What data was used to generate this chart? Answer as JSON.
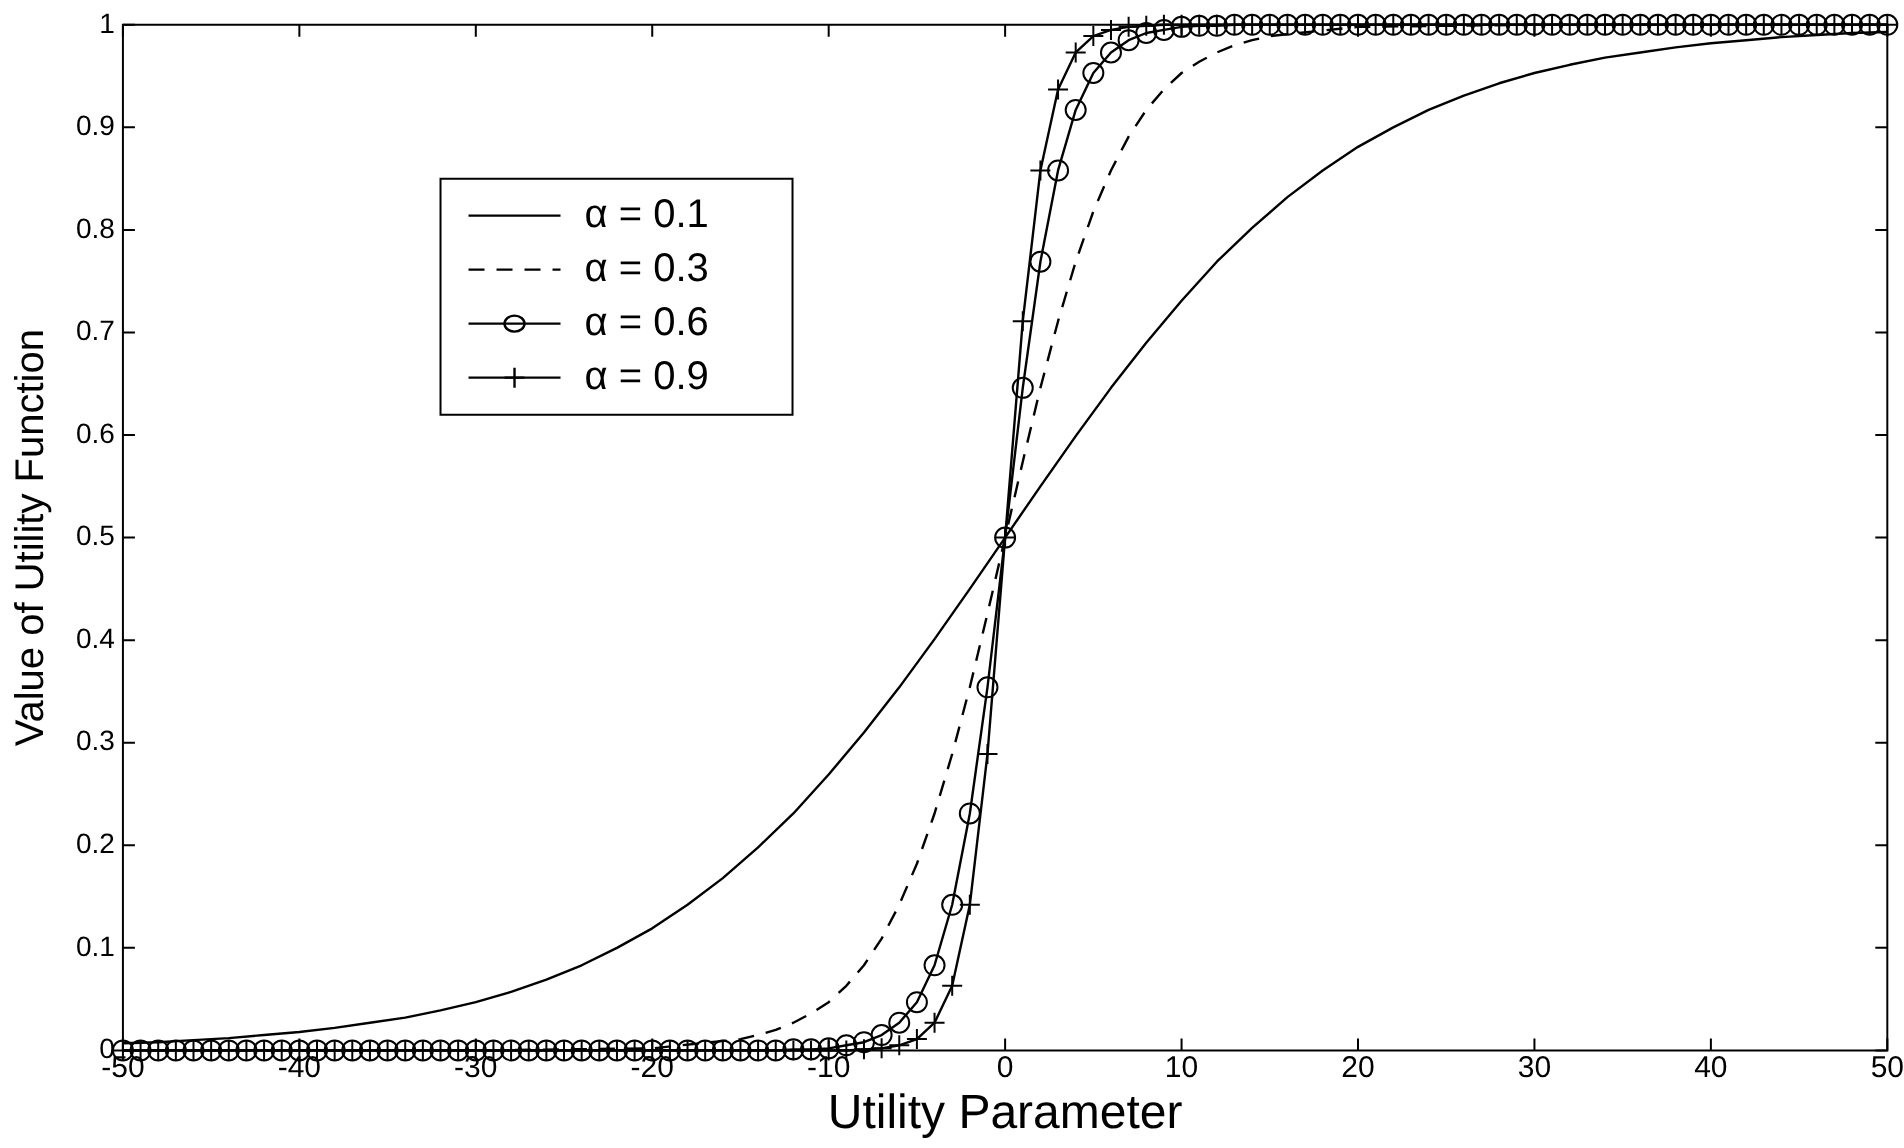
{
  "chart_data": {
    "type": "line",
    "xlabel": "Utility Parameter",
    "ylabel": "Value of Utility Function",
    "series": [
      {
        "name": "α = 0.1",
        "color": "#000000",
        "marker": "none",
        "line_style": "solid",
        "x": [
          -50,
          -48,
          -46,
          -44,
          -42,
          -40,
          -38,
          -36,
          -34,
          -32,
          -30,
          -28,
          -26,
          -24,
          -22,
          -20,
          -18,
          -16,
          -14,
          -12,
          -10,
          -8,
          -6,
          -4,
          -2,
          0,
          2,
          4,
          6,
          8,
          10,
          12,
          14,
          16,
          18,
          20,
          22,
          24,
          26,
          28,
          30,
          32,
          34,
          36,
          38,
          40,
          42,
          44,
          46,
          48,
          50
        ],
        "values": [
          0.007,
          0.008,
          0.01,
          0.012,
          0.015,
          0.018,
          0.022,
          0.027,
          0.032,
          0.039,
          0.047,
          0.057,
          0.069,
          0.083,
          0.1,
          0.119,
          0.142,
          0.168,
          0.198,
          0.231,
          0.269,
          0.31,
          0.354,
          0.401,
          0.45,
          0.5,
          0.55,
          0.599,
          0.646,
          0.69,
          0.731,
          0.769,
          0.802,
          0.832,
          0.858,
          0.881,
          0.9,
          0.917,
          0.931,
          0.943,
          0.953,
          0.961,
          0.968,
          0.973,
          0.978,
          0.982,
          0.985,
          0.988,
          0.99,
          0.992,
          0.993
        ]
      },
      {
        "name": "α = 0.3",
        "color": "#010101",
        "marker": "none",
        "line_style": "dashed",
        "x": [
          -50,
          -40,
          -30,
          -25,
          -20,
          -15,
          -14,
          -13,
          -12,
          -11,
          -10,
          -9,
          -8,
          -7,
          -6,
          -5,
          -4,
          -3,
          -2,
          -1,
          0,
          1,
          2,
          3,
          4,
          5,
          6,
          7,
          8,
          9,
          10,
          11,
          12,
          13,
          14,
          15,
          20,
          25,
          30,
          40,
          50
        ],
        "values": [
          0.0,
          0.0,
          0.0,
          0.001,
          0.002,
          0.011,
          0.015,
          0.02,
          0.027,
          0.036,
          0.047,
          0.063,
          0.083,
          0.109,
          0.142,
          0.182,
          0.231,
          0.289,
          0.354,
          0.426,
          0.5,
          0.574,
          0.646,
          0.711,
          0.769,
          0.818,
          0.858,
          0.891,
          0.917,
          0.937,
          0.953,
          0.964,
          0.973,
          0.98,
          0.985,
          0.989,
          0.998,
          0.999,
          1.0,
          1.0,
          1.0
        ]
      },
      {
        "name": "α = 0.6",
        "color": "#020202",
        "marker": "circle",
        "line_style": "solid",
        "x": [
          -50,
          -49,
          -48,
          -47,
          -46,
          -45,
          -44,
          -43,
          -42,
          -41,
          -40,
          -39,
          -38,
          -37,
          -36,
          -35,
          -34,
          -33,
          -32,
          -31,
          -30,
          -29,
          -28,
          -27,
          -26,
          -25,
          -24,
          -23,
          -22,
          -21,
          -20,
          -19,
          -18,
          -17,
          -16,
          -15,
          -14,
          -13,
          -12,
          -11,
          -10,
          -9,
          -8,
          -7,
          -6,
          -5,
          -4,
          -3,
          -2,
          -1,
          0,
          1,
          2,
          3,
          4,
          5,
          6,
          7,
          8,
          9,
          10,
          11,
          12,
          13,
          14,
          15,
          16,
          17,
          18,
          19,
          20,
          21,
          22,
          23,
          24,
          25,
          26,
          27,
          28,
          29,
          30,
          31,
          32,
          33,
          34,
          35,
          36,
          37,
          38,
          39,
          40,
          41,
          42,
          43,
          44,
          45,
          46,
          47,
          48,
          49,
          50
        ],
        "values": [
          0,
          0,
          0,
          0,
          0,
          0,
          0,
          0,
          0,
          0,
          0,
          0,
          0,
          0,
          0,
          0,
          0,
          0,
          0,
          0,
          0,
          0,
          0,
          0,
          0,
          0,
          0,
          0,
          0,
          0,
          0,
          0,
          0,
          0,
          0,
          0,
          0,
          0,
          0.001,
          0.001,
          0.002,
          0.005,
          0.008,
          0.015,
          0.027,
          0.047,
          0.083,
          0.142,
          0.231,
          0.354,
          0.5,
          0.646,
          0.769,
          0.858,
          0.917,
          0.953,
          0.973,
          0.985,
          0.992,
          0.995,
          0.998,
          0.999,
          0.999,
          1,
          1,
          1,
          1,
          1,
          1,
          1,
          1,
          1,
          1,
          1,
          1,
          1,
          1,
          1,
          1,
          1,
          1,
          1,
          1,
          1,
          1,
          1,
          1,
          1,
          1,
          1,
          1,
          1,
          1,
          1,
          1,
          1,
          1,
          1,
          1,
          1,
          1
        ]
      },
      {
        "name": "α = 0.9",
        "color": "#030303",
        "marker": "cross",
        "line_style": "solid",
        "x": [
          -50,
          -49,
          -48,
          -47,
          -46,
          -45,
          -44,
          -43,
          -42,
          -41,
          -40,
          -39,
          -38,
          -37,
          -36,
          -35,
          -34,
          -33,
          -32,
          -31,
          -30,
          -29,
          -28,
          -27,
          -26,
          -25,
          -24,
          -23,
          -22,
          -21,
          -20,
          -19,
          -18,
          -17,
          -16,
          -15,
          -14,
          -13,
          -12,
          -11,
          -10,
          -9,
          -8,
          -7,
          -6,
          -5,
          -4,
          -3,
          -2,
          -1,
          0,
          1,
          2,
          3,
          4,
          5,
          6,
          7,
          8,
          9,
          10,
          11,
          12,
          13,
          14,
          15,
          16,
          17,
          18,
          19,
          20,
          21,
          22,
          23,
          24,
          25,
          26,
          27,
          28,
          29,
          30,
          31,
          32,
          33,
          34,
          35,
          36,
          37,
          38,
          39,
          40,
          41,
          42,
          43,
          44,
          45,
          46,
          47,
          48,
          49,
          50
        ],
        "values": [
          0,
          0,
          0,
          0,
          0,
          0,
          0,
          0,
          0,
          0,
          0,
          0,
          0,
          0,
          0,
          0,
          0,
          0,
          0,
          0,
          0,
          0,
          0,
          0,
          0,
          0,
          0,
          0,
          0,
          0,
          0,
          0,
          0,
          0,
          0,
          0,
          0,
          0,
          0,
          0,
          0,
          0,
          0.001,
          0.002,
          0.005,
          0.011,
          0.027,
          0.063,
          0.142,
          0.289,
          0.5,
          0.711,
          0.858,
          0.937,
          0.973,
          0.989,
          0.995,
          0.998,
          0.999,
          1,
          1,
          1,
          1,
          1,
          1,
          1,
          1,
          1,
          1,
          1,
          1,
          1,
          1,
          1,
          1,
          1,
          1,
          1,
          1,
          1,
          1,
          1,
          1,
          1,
          1,
          1,
          1,
          1,
          1,
          1,
          1,
          1,
          1,
          1,
          1,
          1,
          1,
          1,
          1,
          1,
          1
        ]
      }
    ],
    "xlim": [
      -50,
      50
    ],
    "xticks": [
      -50,
      -40,
      -30,
      -20,
      -10,
      0,
      10,
      20,
      30,
      40,
      50
    ],
    "ylim": [
      0,
      1
    ],
    "yticks": [
      0,
      0.1,
      0.2,
      0.3,
      0.4,
      0.5,
      0.6,
      0.7,
      0.8,
      0.9,
      1
    ],
    "grid": false,
    "legend": "top left"
  }
}
